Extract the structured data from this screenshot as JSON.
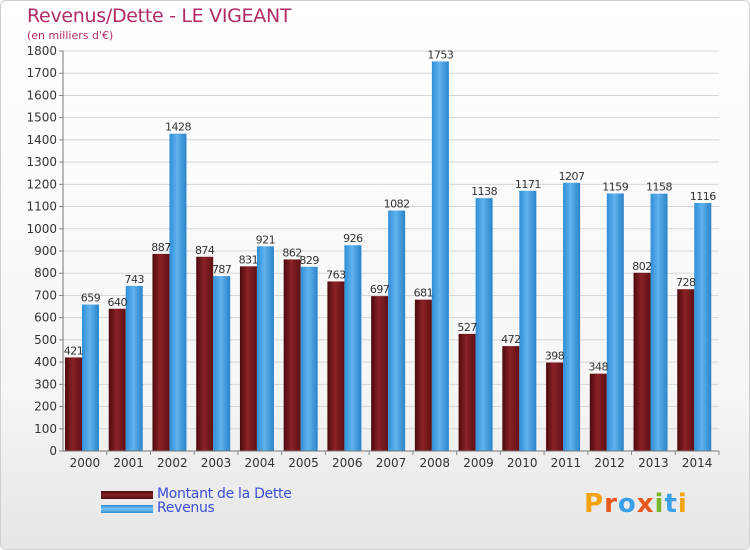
{
  "header": {
    "title": "Revenus/Dette - LE VIGEANT",
    "subtitle": "(en milliers d'€)"
  },
  "logo": {
    "text": "Proxiti",
    "letters": [
      {
        "ch": "P",
        "color": "#f2a30f"
      },
      {
        "ch": "r",
        "color": "#e8581c"
      },
      {
        "ch": "o",
        "color": "#3aa0e8"
      },
      {
        "ch": "x",
        "color": "#e8581c"
      },
      {
        "ch": "i",
        "color": "#79b82a"
      },
      {
        "ch": "t",
        "color": "#3aa0e8"
      },
      {
        "ch": "i",
        "color": "#f2a30f"
      }
    ]
  },
  "chart_data": {
    "type": "bar",
    "title": "Revenus/Dette - LE VIGEANT",
    "subtitle": "(en milliers d'€)",
    "xlabel": "",
    "ylabel": "",
    "ylim": [
      0,
      1800
    ],
    "yticks": [
      0,
      100,
      200,
      300,
      400,
      500,
      600,
      700,
      800,
      900,
      1000,
      1100,
      1200,
      1300,
      1400,
      1500,
      1600,
      1700,
      1800
    ],
    "grid": true,
    "legend_position": "bottom-left",
    "categories": [
      "2000",
      "2001",
      "2002",
      "2003",
      "2004",
      "2005",
      "2006",
      "2007",
      "2008",
      "2009",
      "2010",
      "2011",
      "2012",
      "2013",
      "2014"
    ],
    "series": [
      {
        "name": "Montant de la Dette",
        "color": "#7a1b1f",
        "values": [
          421,
          640,
          887,
          874,
          831,
          862,
          763,
          697,
          681,
          527,
          472,
          398,
          348,
          802,
          728
        ]
      },
      {
        "name": "Revenus",
        "color": "#3b9ee0",
        "values": [
          659,
          743,
          1428,
          787,
          921,
          829,
          926,
          1082,
          1753,
          1138,
          1171,
          1207,
          1159,
          1158,
          1116
        ]
      }
    ]
  }
}
